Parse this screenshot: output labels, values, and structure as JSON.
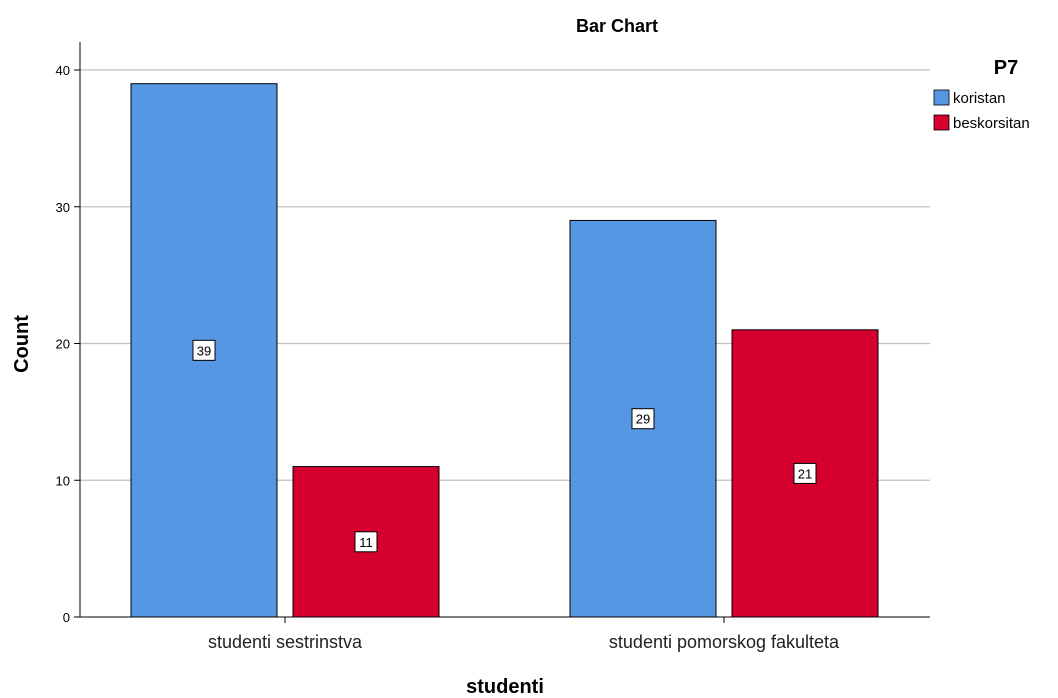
{
  "chart_data": {
    "type": "bar",
    "title": "Bar Chart",
    "xlabel": "studenti",
    "ylabel": "Count",
    "categories": [
      "studenti sestrinstva",
      "studenti pomorskog fakulteta"
    ],
    "series": [
      {
        "name": "koristan",
        "values": [
          39,
          29
        ],
        "color": "#5597e3"
      },
      {
        "name": "beskorsitan",
        "values": [
          11,
          21
        ],
        "color": "#d6002f"
      }
    ],
    "ylim": [
      0,
      40
    ],
    "yticks": [
      0,
      10,
      20,
      30,
      40
    ],
    "grid": true,
    "legend": {
      "title": "P7",
      "placement": "right"
    },
    "data_labels": true
  }
}
